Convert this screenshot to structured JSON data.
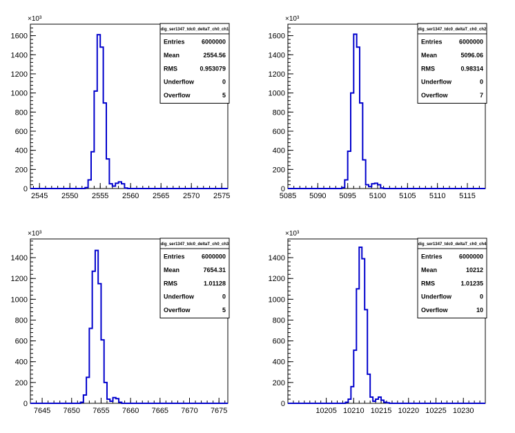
{
  "style": {
    "line_color": "#0000cc",
    "axis_color": "#000000"
  },
  "pads": [
    {
      "stats": {
        "title": "dig_ser1347_tdc0_deltaT_ch0_ch1",
        "rows": [
          [
            "Entries",
            "6000000"
          ],
          [
            "Mean",
            "2554.56"
          ],
          [
            "RMS",
            "0.953079"
          ],
          [
            "Underflow",
            "0"
          ],
          [
            "Overflow",
            "5"
          ]
        ]
      }
    },
    {
      "stats": {
        "title": "dig_ser1347_tdc0_deltaT_ch0_ch2",
        "rows": [
          [
            "Entries",
            "6000000"
          ],
          [
            "Mean",
            "5096.06"
          ],
          [
            "RMS",
            "0.98314"
          ],
          [
            "Underflow",
            "0"
          ],
          [
            "Overflow",
            "7"
          ]
        ]
      }
    },
    {
      "stats": {
        "title": "dig_ser1347_tdc0_deltaT_ch0_ch3",
        "rows": [
          [
            "Entries",
            "6000000"
          ],
          [
            "Mean",
            "7654.31"
          ],
          [
            "RMS",
            "1.01128"
          ],
          [
            "Underflow",
            "0"
          ],
          [
            "Overflow",
            "5"
          ]
        ]
      }
    },
    {
      "stats": {
        "title": "dig_ser1347_tdc0_deltaT_ch0_ch4",
        "rows": [
          [
            "Entries",
            "6000000"
          ],
          [
            "Mean",
            "10212"
          ],
          [
            "RMS",
            "1.01235"
          ],
          [
            "Underflow",
            "0"
          ],
          [
            "Overflow",
            "10"
          ]
        ]
      }
    }
  ],
  "chart_data": [
    {
      "type": "histogram",
      "exponent_label": "×10³",
      "bin_width": 0.5,
      "xlim": [
        2543.5,
        2576
      ],
      "ylim": [
        0,
        1720
      ],
      "xticks": [
        "2545",
        "2550",
        "2555",
        "2560",
        "2565",
        "2570",
        "2575"
      ],
      "yticks": [
        "0",
        "200",
        "400",
        "600",
        "800",
        "1000",
        "1200",
        "1400",
        "1600"
      ],
      "bins_start": [
        2552.5,
        2553,
        2553.5,
        2554,
        2554.5,
        2555,
        2555.5,
        2556,
        2556.5,
        2557,
        2557.5,
        2558,
        2558.5,
        2559
      ],
      "values": [
        10,
        90,
        385,
        1020,
        1610,
        1480,
        895,
        310,
        50,
        25,
        55,
        70,
        50,
        5
      ]
    },
    {
      "type": "histogram",
      "exponent_label": "×10³",
      "bin_width": 0.5,
      "xlim": [
        5085,
        5118
      ],
      "ylim": [
        0,
        1720
      ],
      "xticks": [
        "5085",
        "5090",
        "5095",
        "5100",
        "5105",
        "5110",
        "5115"
      ],
      "yticks": [
        "0",
        "200",
        "400",
        "600",
        "800",
        "1000",
        "1200",
        "1400",
        "1600"
      ],
      "bins_start": [
        5094,
        5094.5,
        5095,
        5095.5,
        5096,
        5096.5,
        5097,
        5097.5,
        5098,
        5098.5,
        5099,
        5099.5,
        5100,
        5100.5
      ],
      "values": [
        10,
        90,
        390,
        1000,
        1615,
        1480,
        895,
        300,
        40,
        20,
        50,
        55,
        40,
        5
      ]
    },
    {
      "type": "histogram",
      "exponent_label": "×10³",
      "bin_width": 0.5,
      "xlim": [
        7643,
        7676.5
      ],
      "ylim": [
        0,
        1580
      ],
      "xticks": [
        "7645",
        "7650",
        "7655",
        "7660",
        "7665",
        "7670",
        "7675"
      ],
      "yticks": [
        "0",
        "200",
        "400",
        "600",
        "800",
        "1000",
        "1200",
        "1400"
      ],
      "bins_start": [
        7651.5,
        7652,
        7652.5,
        7653,
        7653.5,
        7654,
        7654.5,
        7655,
        7655.5,
        7656,
        7656.5,
        7657,
        7657.5,
        7658
      ],
      "values": [
        10,
        80,
        250,
        720,
        1270,
        1470,
        1150,
        610,
        200,
        40,
        20,
        55,
        45,
        10
      ]
    },
    {
      "type": "histogram",
      "exponent_label": "×10³",
      "bin_width": 0.5,
      "xlim": [
        10198,
        10234
      ],
      "ylim": [
        0,
        1580
      ],
      "xticks": [
        "10205",
        "10210",
        "10215",
        "10220",
        "10225",
        "10230"
      ],
      "yticks": [
        "0",
        "200",
        "400",
        "600",
        "800",
        "1000",
        "1200",
        "1400"
      ],
      "bins_start": [
        10208.5,
        10209,
        10209.5,
        10210,
        10210.5,
        10211,
        10211.5,
        10212,
        10212.5,
        10213,
        10213.5,
        10214,
        10214.5,
        10215,
        10215.5,
        10216
      ],
      "values": [
        10,
        40,
        160,
        510,
        1100,
        1500,
        1390,
        900,
        280,
        60,
        20,
        40,
        60,
        30,
        10,
        5
      ]
    }
  ]
}
